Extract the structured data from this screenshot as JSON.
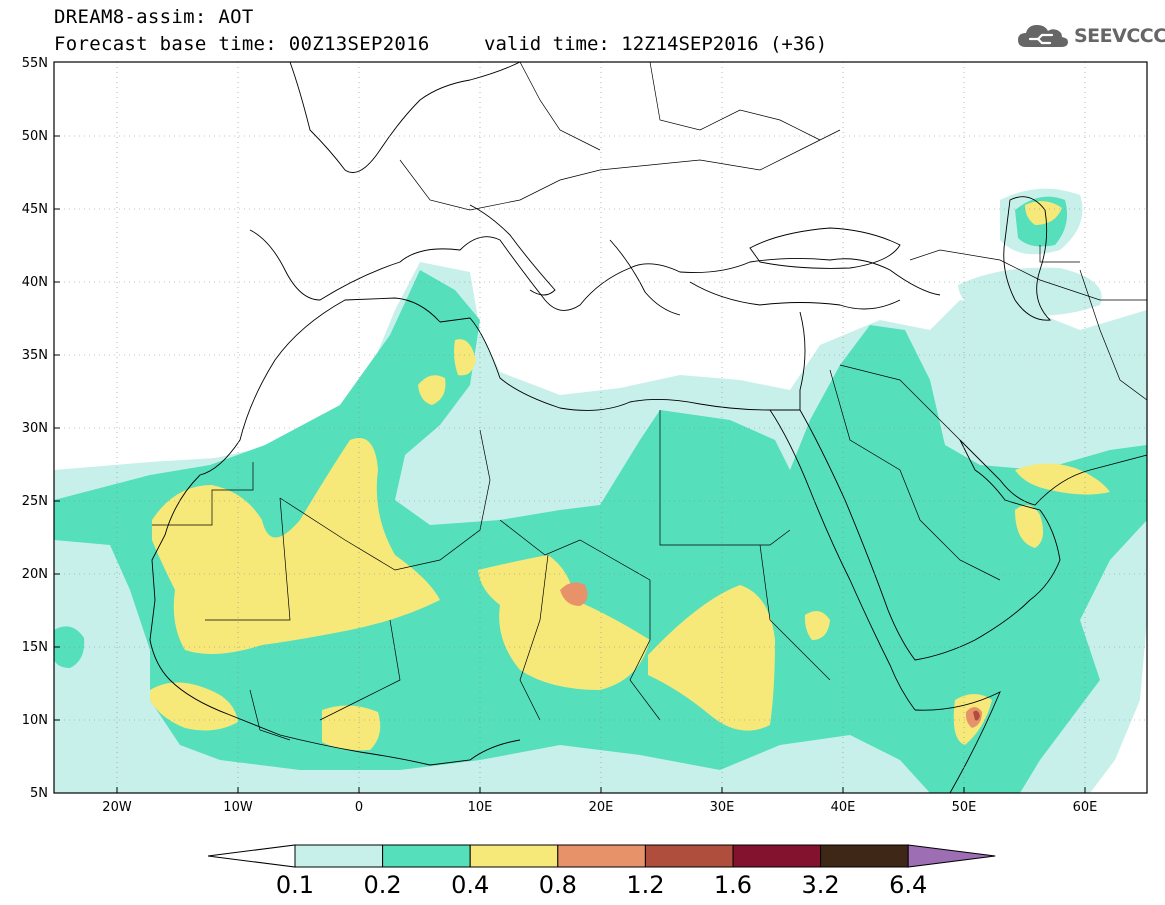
{
  "header": {
    "title": "DREAM8-assim: AOT",
    "base_time": "Forecast base time: 00Z13SEP2016",
    "valid_time": "valid time: 12Z14SEP2016 (+36)"
  },
  "logo": {
    "text": "SEEVCCC",
    "icon": "cloud-icon",
    "color": "#666666"
  },
  "map": {
    "lon_range": [
      -25,
      65
    ],
    "lat_range": [
      5,
      55
    ],
    "lat_ticks": [
      "5N",
      "10N",
      "15N",
      "20N",
      "25N",
      "30N",
      "35N",
      "40N",
      "45N",
      "50N",
      "55N"
    ],
    "lon_ticks": [
      "20W",
      "10W",
      "0",
      "10E",
      "20E",
      "30E",
      "40E",
      "50E",
      "60E"
    ],
    "background": "#ffffff"
  },
  "legend": {
    "colors": [
      "#ffffff",
      "#c8f0ea",
      "#55dfbb",
      "#f6e97a",
      "#e8926a",
      "#b04e3e",
      "#82122e",
      "#3e2716",
      "#9e6eb4"
    ],
    "labels": [
      "0.1",
      "0.2",
      "0.4",
      "0.8",
      "1.2",
      "1.6",
      "3.2",
      "6.4"
    ]
  }
}
